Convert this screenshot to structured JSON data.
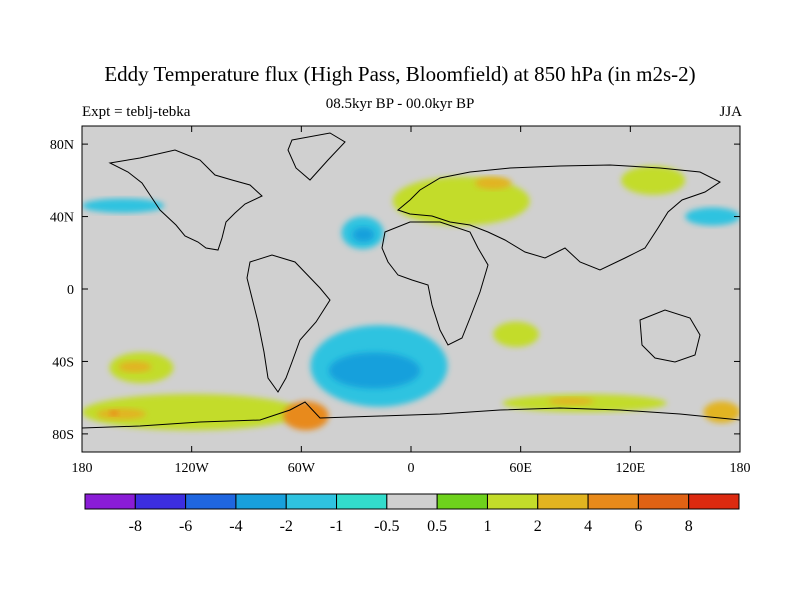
{
  "title": "Eddy Temperature flux (High Pass, Bloomfield) at 850 hPa (in m2s-2)",
  "subtitle_left": "Expt = teblj-tebka",
  "subtitle_center": "08.5kyr BP - 00.0kyr BP",
  "subtitle_right": "JJA",
  "chart_data": {
    "type": "heatmap",
    "title": "Eddy Temperature flux (High Pass, Bloomfield) at 850 hPa (in m2s-2)",
    "projection": "cylindrical-equidistant",
    "xlim": [
      -180,
      180
    ],
    "ylim": [
      -90,
      90
    ],
    "x_ticks": [
      "180",
      "120W",
      "60W",
      "0",
      "60E",
      "120E",
      "180"
    ],
    "y_ticks": [
      "80N",
      "40N",
      "0",
      "40S",
      "80S"
    ],
    "colorbar": {
      "levels": [
        "-8",
        "-6",
        "-4",
        "-2",
        "-1",
        "-0.5",
        "0.5",
        "1",
        "2",
        "4",
        "6",
        "8"
      ],
      "colors": [
        "#8a1cd6",
        "#3c2ee0",
        "#1f66e0",
        "#18a0dc",
        "#2fc3e0",
        "#32dccb",
        "#d0d0d0",
        "#6ed21c",
        "#c3dc2a",
        "#e2b420",
        "#e88a1a",
        "#e06214",
        "#dc2a10"
      ]
    },
    "background_color": "#d0d0d0",
    "regions": [
      {
        "lon": [
          -165,
          -130
        ],
        "lat": [
          -35,
          -52
        ],
        "level": "1"
      },
      {
        "lon": [
          -160,
          -142
        ],
        "lat": [
          -40,
          -46
        ],
        "level": "2"
      },
      {
        "lon": [
          -180,
          -60
        ],
        "lat": [
          -58,
          -78
        ],
        "level": "1"
      },
      {
        "lon": [
          -172,
          -145
        ],
        "lat": [
          -66,
          -72
        ],
        "level": "2"
      },
      {
        "lon": [
          -165,
          -160
        ],
        "lat": [
          -67,
          -70
        ],
        "level": "4"
      },
      {
        "lon": [
          -70,
          -45
        ],
        "lat": [
          -62,
          -78
        ],
        "level": "4"
      },
      {
        "lon": [
          -55,
          20
        ],
        "lat": [
          -20,
          -65
        ],
        "level": "-1"
      },
      {
        "lon": [
          -45,
          5
        ],
        "lat": [
          -35,
          -55
        ],
        "level": "-2"
      },
      {
        "lon": [
          -38,
          -15
        ],
        "lat": [
          22,
          40
        ],
        "level": "-1"
      },
      {
        "lon": [
          -32,
          -20
        ],
        "lat": [
          26,
          34
        ],
        "level": "-2"
      },
      {
        "lon": [
          -10,
          65
        ],
        "lat": [
          35,
          62
        ],
        "level": "1"
      },
      {
        "lon": [
          35,
          55
        ],
        "lat": [
          55,
          62
        ],
        "level": "2"
      },
      {
        "lon": [
          115,
          150
        ],
        "lat": [
          52,
          68
        ],
        "level": "1"
      },
      {
        "lon": [
          150,
          180
        ],
        "lat": [
          35,
          45
        ],
        "level": "-1"
      },
      {
        "lon": [
          -180,
          -135
        ],
        "lat": [
          42,
          50
        ],
        "level": "-1"
      },
      {
        "lon": [
          50,
          140
        ],
        "lat": [
          -58,
          -68
        ],
        "level": "1"
      },
      {
        "lon": [
          75,
          100
        ],
        "lat": [
          -60,
          -64
        ],
        "level": "2"
      },
      {
        "lon": [
          160,
          180
        ],
        "lat": [
          -62,
          -74
        ],
        "level": "2"
      },
      {
        "lon": [
          45,
          70
        ],
        "lat": [
          -18,
          -32
        ],
        "level": "1"
      }
    ]
  }
}
